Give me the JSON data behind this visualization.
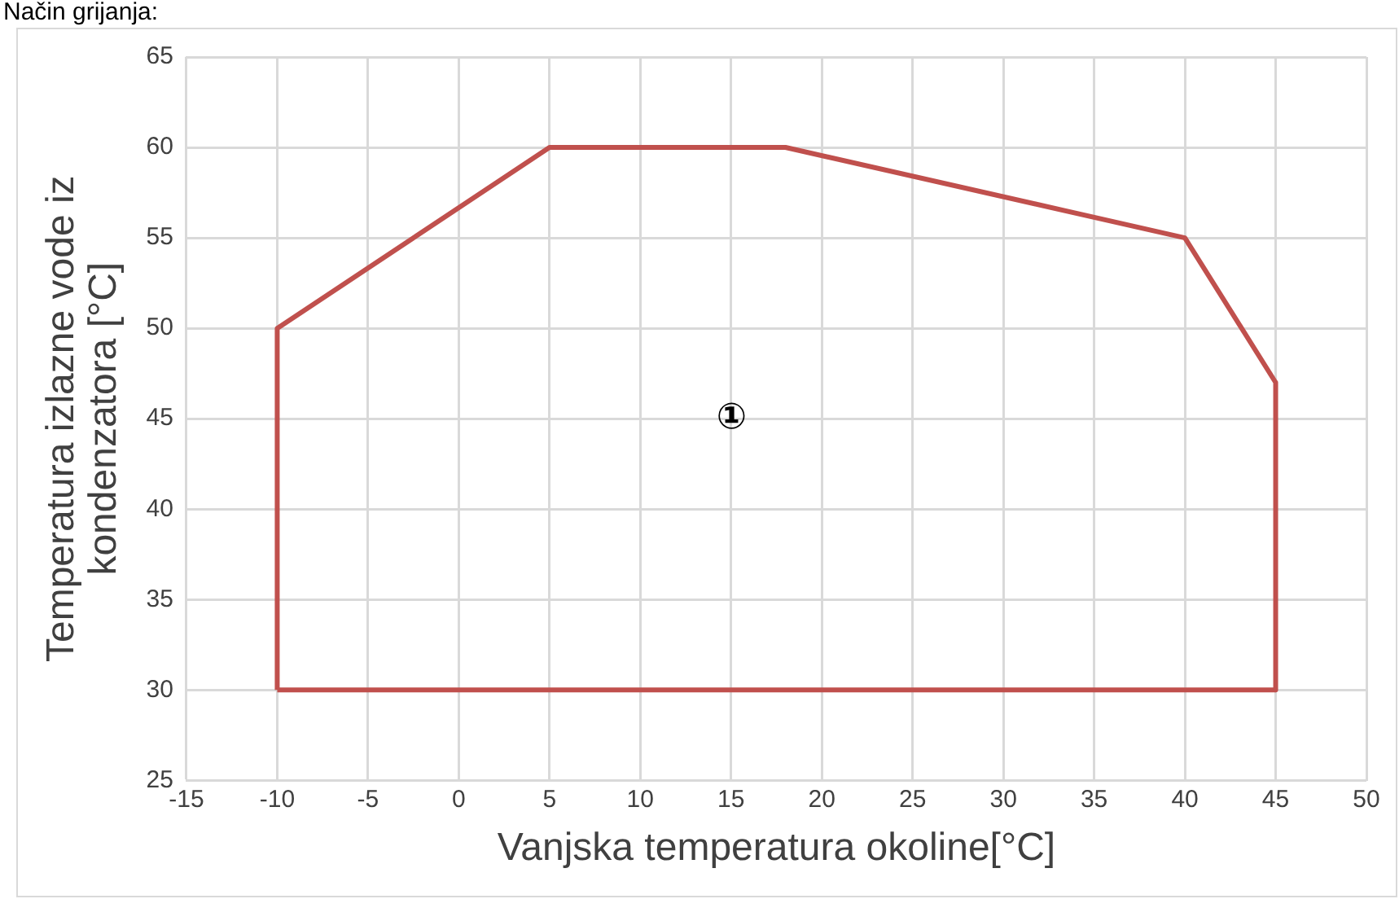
{
  "chart_data": {
    "type": "line",
    "title": "Način grijanja:",
    "xlabel": "Vanjska temperatura okoline[°C]",
    "ylabel": "Temperatura izlazne vode iz\nkondenzatora [°C]",
    "series": [
      {
        "color": "#c0504d",
        "x": [
          -10,
          -10,
          5,
          18,
          40,
          45,
          45
        ],
        "values": [
          30,
          50,
          60,
          60,
          55,
          47,
          30
        ]
      },
      {
        "color": "#c0504d",
        "x": [
          -10,
          45
        ],
        "values": [
          30,
          30
        ]
      }
    ],
    "xlim": [
      -15,
      50
    ],
    "xticks": [
      -15,
      -10,
      -5,
      0,
      5,
      10,
      15,
      20,
      25,
      30,
      35,
      40,
      45,
      50
    ],
    "ylim": [
      25,
      65
    ],
    "yticks": [
      25,
      30,
      35,
      40,
      45,
      50,
      55,
      60,
      65
    ],
    "grid": true,
    "legend": false,
    "marker": "none",
    "line_style": "solid",
    "annotations": [
      "①"
    ]
  }
}
